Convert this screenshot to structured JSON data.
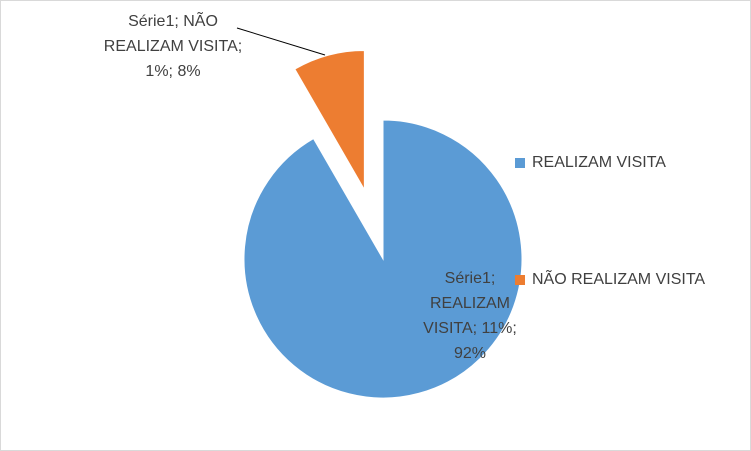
{
  "chart_data": {
    "type": "pie",
    "categories": [
      "REALIZAM VISITA",
      "NÃO REALIZAM VISITA"
    ],
    "series": [
      {
        "name": "Série1",
        "values": [
          11,
          1
        ],
        "value_labels": [
          "11%",
          "1%"
        ]
      }
    ],
    "percent_labels": [
      "92%",
      "8%"
    ],
    "label_separator": "; ",
    "colors": [
      "#5b9bd5",
      "#ed7d31"
    ],
    "exploded": [
      false,
      true
    ],
    "legend": "right"
  }
}
